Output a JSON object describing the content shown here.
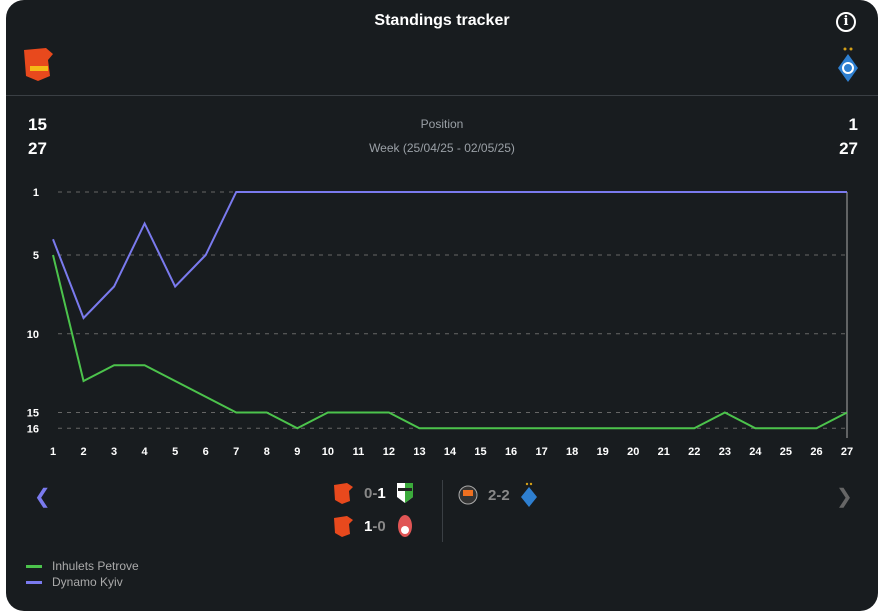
{
  "header": {
    "title": "Standings tracker",
    "info_icon": "info-icon"
  },
  "teams": [
    {
      "name": "Inhulets Petrove",
      "position": "15",
      "week": "27",
      "color": "#4cc34c"
    },
    {
      "name": "Dynamo Kyiv",
      "position": "1",
      "week": "27",
      "color": "#7a7aee"
    }
  ],
  "labels": {
    "position": "Position",
    "week": "Week (25/04/25 - 02/05/25)"
  },
  "matches": {
    "left": [
      {
        "home": "Inhulets Petrove",
        "home_score": "0",
        "away_score": "1",
        "sep": "-"
      },
      {
        "home": "Inhulets Petrove",
        "home_score": "1",
        "away_score": "0",
        "sep": "-"
      }
    ],
    "right": [
      {
        "home_score": "2",
        "away_score": "2",
        "sep": "-"
      }
    ]
  },
  "chart_data": {
    "type": "line",
    "title": "Standings tracker",
    "xlabel": "Week",
    "ylabel": "Position",
    "x": [
      1,
      2,
      3,
      4,
      5,
      6,
      7,
      8,
      9,
      10,
      11,
      12,
      13,
      14,
      15,
      16,
      17,
      18,
      19,
      20,
      21,
      22,
      23,
      24,
      25,
      26,
      27
    ],
    "yticks": [
      1,
      5,
      10,
      15,
      16
    ],
    "ylim": [
      1,
      16
    ],
    "y_inverted": true,
    "legend": "bottom-left",
    "series": [
      {
        "name": "Inhulets Petrove",
        "color": "#4cc34c",
        "values": [
          5,
          13,
          12,
          12,
          13,
          14,
          15,
          15,
          16,
          15,
          15,
          15,
          16,
          16,
          16,
          16,
          16,
          16,
          16,
          16,
          16,
          16,
          15,
          16,
          16,
          16,
          15
        ]
      },
      {
        "name": "Dynamo Kyiv",
        "color": "#7a7aee",
        "values": [
          4,
          9,
          7,
          3,
          7,
          5,
          1,
          1,
          1,
          1,
          1,
          1,
          1,
          1,
          1,
          1,
          1,
          1,
          1,
          1,
          1,
          1,
          1,
          1,
          1,
          1,
          1
        ]
      }
    ]
  }
}
